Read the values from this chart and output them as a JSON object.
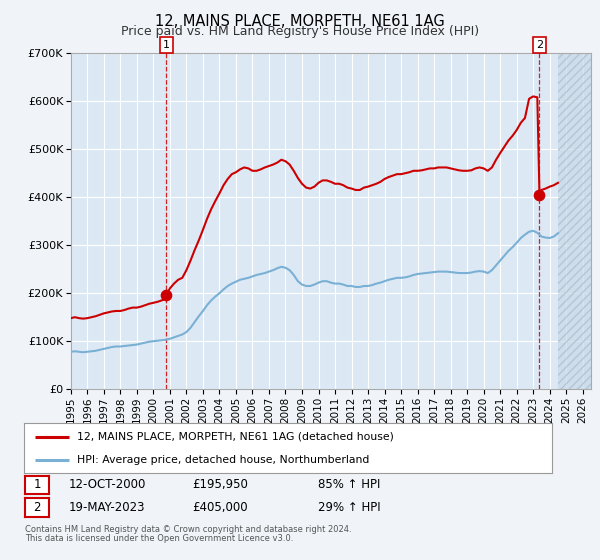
{
  "title": "12, MAINS PLACE, MORPETH, NE61 1AG",
  "subtitle": "Price paid vs. HM Land Registry's House Price Index (HPI)",
  "background_color": "#f0f4f8",
  "plot_bg_color": "#dce9f5",
  "grid_color": "#ffffff",
  "hatch_color": "#c8d8e8",
  "ylim": [
    0,
    700000
  ],
  "xlim_start": 1995.0,
  "xlim_end": 2026.5,
  "yticks": [
    0,
    100000,
    200000,
    300000,
    400000,
    500000,
    600000,
    700000
  ],
  "ytick_labels": [
    "£0",
    "£100K",
    "£200K",
    "£300K",
    "£400K",
    "£500K",
    "£600K",
    "£700K"
  ],
  "xtick_years": [
    1995,
    1996,
    1997,
    1998,
    1999,
    2000,
    2001,
    2002,
    2003,
    2004,
    2005,
    2006,
    2007,
    2008,
    2009,
    2010,
    2011,
    2012,
    2013,
    2014,
    2015,
    2016,
    2017,
    2018,
    2019,
    2020,
    2021,
    2022,
    2023,
    2024,
    2025,
    2026
  ],
  "red_line_color": "#cc0000",
  "blue_line_color": "#7ab0d4",
  "marker_color": "#cc0000",
  "dashed_line_color": "#cc0000",
  "transaction1_x": 2000.79,
  "transaction1_y": 195950,
  "transaction2_x": 2023.38,
  "transaction2_y": 405000,
  "data_end_x": 2024.5,
  "legend_red_label": "12, MAINS PLACE, MORPETH, NE61 1AG (detached house)",
  "legend_blue_label": "HPI: Average price, detached house, Northumberland",
  "table_row1": [
    "1",
    "12-OCT-2000",
    "£195,950",
    "85% ↑ HPI"
  ],
  "table_row2": [
    "2",
    "19-MAY-2023",
    "£405,000",
    "29% ↑ HPI"
  ],
  "footer_line1": "Contains HM Land Registry data © Crown copyright and database right 2024.",
  "footer_line2": "This data is licensed under the Open Government Licence v3.0.",
  "red_hpi_data": [
    [
      1995.0,
      148000
    ],
    [
      1995.25,
      150000
    ],
    [
      1995.5,
      148000
    ],
    [
      1995.75,
      147000
    ],
    [
      1996.0,
      148000
    ],
    [
      1996.25,
      150000
    ],
    [
      1996.5,
      152000
    ],
    [
      1996.75,
      155000
    ],
    [
      1997.0,
      158000
    ],
    [
      1997.25,
      160000
    ],
    [
      1997.5,
      162000
    ],
    [
      1997.75,
      163000
    ],
    [
      1998.0,
      163000
    ],
    [
      1998.25,
      165000
    ],
    [
      1998.5,
      168000
    ],
    [
      1998.75,
      170000
    ],
    [
      1999.0,
      170000
    ],
    [
      1999.25,
      172000
    ],
    [
      1999.5,
      175000
    ],
    [
      1999.75,
      178000
    ],
    [
      2000.0,
      180000
    ],
    [
      2000.25,
      182000
    ],
    [
      2000.5,
      185000
    ],
    [
      2000.75,
      188000
    ],
    [
      2000.79,
      195950
    ],
    [
      2001.0,
      210000
    ],
    [
      2001.25,
      220000
    ],
    [
      2001.5,
      228000
    ],
    [
      2001.75,
      232000
    ],
    [
      2002.0,
      248000
    ],
    [
      2002.25,
      268000
    ],
    [
      2002.5,
      290000
    ],
    [
      2002.75,
      310000
    ],
    [
      2003.0,
      332000
    ],
    [
      2003.25,
      355000
    ],
    [
      2003.5,
      375000
    ],
    [
      2003.75,
      392000
    ],
    [
      2004.0,
      408000
    ],
    [
      2004.25,
      425000
    ],
    [
      2004.5,
      438000
    ],
    [
      2004.75,
      448000
    ],
    [
      2005.0,
      452000
    ],
    [
      2005.25,
      458000
    ],
    [
      2005.5,
      462000
    ],
    [
      2005.75,
      460000
    ],
    [
      2006.0,
      455000
    ],
    [
      2006.25,
      455000
    ],
    [
      2006.5,
      458000
    ],
    [
      2006.75,
      462000
    ],
    [
      2007.0,
      465000
    ],
    [
      2007.25,
      468000
    ],
    [
      2007.5,
      472000
    ],
    [
      2007.75,
      478000
    ],
    [
      2008.0,
      475000
    ],
    [
      2008.25,
      468000
    ],
    [
      2008.5,
      455000
    ],
    [
      2008.75,
      440000
    ],
    [
      2009.0,
      428000
    ],
    [
      2009.25,
      420000
    ],
    [
      2009.5,
      418000
    ],
    [
      2009.75,
      422000
    ],
    [
      2010.0,
      430000
    ],
    [
      2010.25,
      435000
    ],
    [
      2010.5,
      435000
    ],
    [
      2010.75,
      432000
    ],
    [
      2011.0,
      428000
    ],
    [
      2011.25,
      428000
    ],
    [
      2011.5,
      425000
    ],
    [
      2011.75,
      420000
    ],
    [
      2012.0,
      418000
    ],
    [
      2012.25,
      415000
    ],
    [
      2012.5,
      415000
    ],
    [
      2012.75,
      420000
    ],
    [
      2013.0,
      422000
    ],
    [
      2013.25,
      425000
    ],
    [
      2013.5,
      428000
    ],
    [
      2013.75,
      432000
    ],
    [
      2014.0,
      438000
    ],
    [
      2014.25,
      442000
    ],
    [
      2014.5,
      445000
    ],
    [
      2014.75,
      448000
    ],
    [
      2015.0,
      448000
    ],
    [
      2015.25,
      450000
    ],
    [
      2015.5,
      452000
    ],
    [
      2015.75,
      455000
    ],
    [
      2016.0,
      455000
    ],
    [
      2016.25,
      456000
    ],
    [
      2016.5,
      458000
    ],
    [
      2016.75,
      460000
    ],
    [
      2017.0,
      460000
    ],
    [
      2017.25,
      462000
    ],
    [
      2017.5,
      462000
    ],
    [
      2017.75,
      462000
    ],
    [
      2018.0,
      460000
    ],
    [
      2018.25,
      458000
    ],
    [
      2018.5,
      456000
    ],
    [
      2018.75,
      455000
    ],
    [
      2019.0,
      455000
    ],
    [
      2019.25,
      456000
    ],
    [
      2019.5,
      460000
    ],
    [
      2019.75,
      462000
    ],
    [
      2020.0,
      460000
    ],
    [
      2020.25,
      455000
    ],
    [
      2020.5,
      462000
    ],
    [
      2020.75,
      478000
    ],
    [
      2021.0,
      492000
    ],
    [
      2021.25,
      505000
    ],
    [
      2021.5,
      518000
    ],
    [
      2021.75,
      528000
    ],
    [
      2022.0,
      540000
    ],
    [
      2022.25,
      555000
    ],
    [
      2022.5,
      565000
    ],
    [
      2022.75,
      605000
    ],
    [
      2023.0,
      610000
    ],
    [
      2023.25,
      608000
    ],
    [
      2023.38,
      405000
    ],
    [
      2023.5,
      415000
    ],
    [
      2023.75,
      418000
    ],
    [
      2024.0,
      422000
    ],
    [
      2024.25,
      425000
    ],
    [
      2024.5,
      430000
    ]
  ],
  "blue_hpi_data": [
    [
      1995.0,
      78000
    ],
    [
      1995.25,
      79000
    ],
    [
      1995.5,
      78000
    ],
    [
      1995.75,
      77000
    ],
    [
      1996.0,
      78000
    ],
    [
      1996.25,
      79000
    ],
    [
      1996.5,
      80000
    ],
    [
      1996.75,
      82000
    ],
    [
      1997.0,
      84000
    ],
    [
      1997.25,
      86000
    ],
    [
      1997.5,
      88000
    ],
    [
      1997.75,
      89000
    ],
    [
      1998.0,
      89000
    ],
    [
      1998.25,
      90000
    ],
    [
      1998.5,
      91000
    ],
    [
      1998.75,
      92000
    ],
    [
      1999.0,
      93000
    ],
    [
      1999.25,
      95000
    ],
    [
      1999.5,
      97000
    ],
    [
      1999.75,
      99000
    ],
    [
      2000.0,
      100000
    ],
    [
      2000.25,
      101000
    ],
    [
      2000.5,
      102000
    ],
    [
      2000.75,
      103000
    ],
    [
      2001.0,
      105000
    ],
    [
      2001.25,
      108000
    ],
    [
      2001.5,
      111000
    ],
    [
      2001.75,
      114000
    ],
    [
      2002.0,
      119000
    ],
    [
      2002.25,
      128000
    ],
    [
      2002.5,
      140000
    ],
    [
      2002.75,
      152000
    ],
    [
      2003.0,
      163000
    ],
    [
      2003.25,
      175000
    ],
    [
      2003.5,
      185000
    ],
    [
      2003.75,
      193000
    ],
    [
      2004.0,
      200000
    ],
    [
      2004.25,
      208000
    ],
    [
      2004.5,
      215000
    ],
    [
      2004.75,
      220000
    ],
    [
      2005.0,
      224000
    ],
    [
      2005.25,
      228000
    ],
    [
      2005.5,
      230000
    ],
    [
      2005.75,
      232000
    ],
    [
      2006.0,
      235000
    ],
    [
      2006.25,
      238000
    ],
    [
      2006.5,
      240000
    ],
    [
      2006.75,
      242000
    ],
    [
      2007.0,
      245000
    ],
    [
      2007.25,
      248000
    ],
    [
      2007.5,
      252000
    ],
    [
      2007.75,
      255000
    ],
    [
      2008.0,
      253000
    ],
    [
      2008.25,
      248000
    ],
    [
      2008.5,
      238000
    ],
    [
      2008.75,
      225000
    ],
    [
      2009.0,
      218000
    ],
    [
      2009.25,
      215000
    ],
    [
      2009.5,
      215000
    ],
    [
      2009.75,
      218000
    ],
    [
      2010.0,
      222000
    ],
    [
      2010.25,
      225000
    ],
    [
      2010.5,
      225000
    ],
    [
      2010.75,
      222000
    ],
    [
      2011.0,
      220000
    ],
    [
      2011.25,
      220000
    ],
    [
      2011.5,
      218000
    ],
    [
      2011.75,
      215000
    ],
    [
      2012.0,
      215000
    ],
    [
      2012.25,
      213000
    ],
    [
      2012.5,
      213000
    ],
    [
      2012.75,
      215000
    ],
    [
      2013.0,
      215000
    ],
    [
      2013.25,
      217000
    ],
    [
      2013.5,
      220000
    ],
    [
      2013.75,
      222000
    ],
    [
      2014.0,
      225000
    ],
    [
      2014.25,
      228000
    ],
    [
      2014.5,
      230000
    ],
    [
      2014.75,
      232000
    ],
    [
      2015.0,
      232000
    ],
    [
      2015.25,
      233000
    ],
    [
      2015.5,
      235000
    ],
    [
      2015.75,
      238000
    ],
    [
      2016.0,
      240000
    ],
    [
      2016.25,
      241000
    ],
    [
      2016.5,
      242000
    ],
    [
      2016.75,
      243000
    ],
    [
      2017.0,
      244000
    ],
    [
      2017.25,
      245000
    ],
    [
      2017.5,
      245000
    ],
    [
      2017.75,
      245000
    ],
    [
      2018.0,
      244000
    ],
    [
      2018.25,
      243000
    ],
    [
      2018.5,
      242000
    ],
    [
      2018.75,
      242000
    ],
    [
      2019.0,
      242000
    ],
    [
      2019.25,
      243000
    ],
    [
      2019.5,
      245000
    ],
    [
      2019.75,
      246000
    ],
    [
      2020.0,
      245000
    ],
    [
      2020.25,
      242000
    ],
    [
      2020.5,
      248000
    ],
    [
      2020.75,
      258000
    ],
    [
      2021.0,
      268000
    ],
    [
      2021.25,
      278000
    ],
    [
      2021.5,
      288000
    ],
    [
      2021.75,
      296000
    ],
    [
      2022.0,
      305000
    ],
    [
      2022.25,
      315000
    ],
    [
      2022.5,
      322000
    ],
    [
      2022.75,
      328000
    ],
    [
      2023.0,
      330000
    ],
    [
      2023.25,
      326000
    ],
    [
      2023.5,
      318000
    ],
    [
      2023.75,
      316000
    ],
    [
      2024.0,
      315000
    ],
    [
      2024.25,
      318000
    ],
    [
      2024.5,
      325000
    ]
  ]
}
